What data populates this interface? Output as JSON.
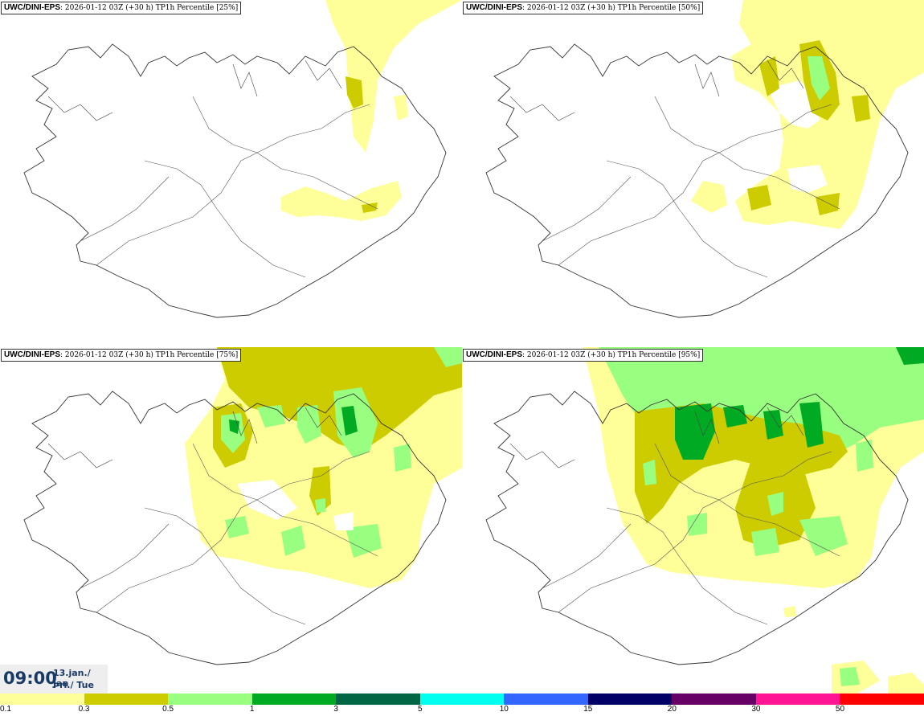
{
  "panels": [
    {
      "model": "UWC/DINI-EPS",
      "subtitle": ": 2026-01-12 03Z (+30 h) TP1h Percentile [25%]"
    },
    {
      "model": "UWC/DINI-EPS",
      "subtitle": ": 2026-01-12 03Z (+30 h) TP1h Percentile [50%]"
    },
    {
      "model": "UWC/DINI-EPS",
      "subtitle": ": 2026-01-12 03Z (+30 h) TP1h Percentile [75%]"
    },
    {
      "model": "UWC/DINI-EPS",
      "subtitle": ": 2026-01-12 03Z (+30 h) TP1h Percentile [95%]"
    }
  ],
  "time_box": {
    "time": "09:00",
    "date_line1": "13.jan./ Jan",
    "date_line2": "Þri./ Tue"
  },
  "colorbar": {
    "ticks": [
      "0.1",
      "0.3",
      "0.5",
      "1",
      "3",
      "5",
      "10",
      "15",
      "20",
      "30",
      "50"
    ],
    "colors": [
      "#ffff99",
      "#cccc00",
      "#99ff80",
      "#00aa22",
      "#006644",
      "#00ffee",
      "#3366ff",
      "#000066",
      "#660066",
      "#ff1493",
      "#ff0000"
    ]
  }
}
